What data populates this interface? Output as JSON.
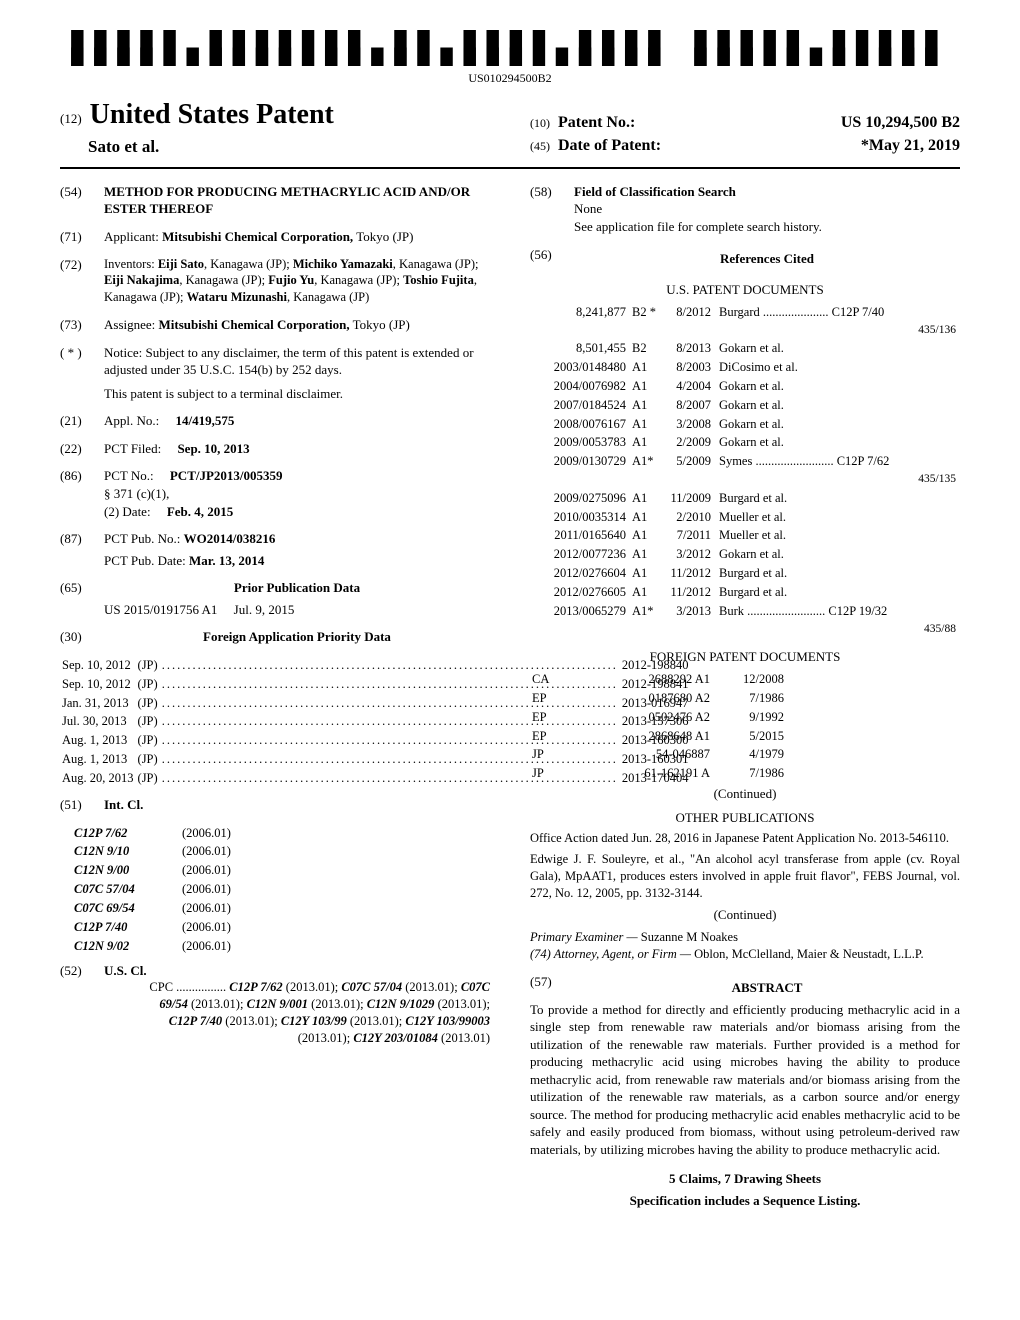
{
  "barcode_label": "US010294500B2",
  "header": {
    "prefix": "(12)",
    "title": "United States Patent",
    "authors": "Sato et al.",
    "patent_no_prefix": "(10)",
    "patent_no_label": "Patent No.:",
    "patent_no": "US 10,294,500 B2",
    "date_prefix": "(45)",
    "date_label": "Date of Patent:",
    "date": "*May 21, 2019"
  },
  "left": {
    "s54": {
      "num": "(54)",
      "title": "METHOD FOR PRODUCING METHACRYLIC ACID AND/OR ESTER THEREOF"
    },
    "s71": {
      "num": "(71)",
      "label": "Applicant:",
      "val": "Mitsubishi Chemical Corporation,",
      "loc": "Tokyo (JP)"
    },
    "s72": {
      "num": "(72)",
      "label": "Inventors:",
      "val": "Eiji Sato, Kanagawa (JP); Michiko Yamazaki, Kanagawa (JP); Eiji Nakajima, Kanagawa (JP); Fujio Yu, Kanagawa (JP); Toshio Fujita, Kanagawa (JP); Wataru Mizunashi, Kanagawa (JP)"
    },
    "s73": {
      "num": "(73)",
      "label": "Assignee:",
      "val": "Mitsubishi Chemical Corporation,",
      "loc": "Tokyo (JP)"
    },
    "notice": {
      "num": "( * )",
      "label": "Notice:",
      "line1": "Subject to any disclaimer, the term of this patent is extended or adjusted under 35 U.S.C. 154(b) by 252 days.",
      "line2": "This patent is subject to a terminal disclaimer."
    },
    "s21": {
      "num": "(21)",
      "label": "Appl. No.:",
      "val": "14/419,575"
    },
    "s22": {
      "num": "(22)",
      "label": "PCT Filed:",
      "val": "Sep. 10, 2013"
    },
    "s86": {
      "num": "(86)",
      "label": "PCT No.:",
      "val": "PCT/JP2013/005359",
      "sub1": "§ 371 (c)(1),",
      "sub2label": "(2) Date:",
      "sub2val": "Feb. 4, 2015"
    },
    "s87": {
      "num": "(87)",
      "label": "PCT Pub. No.:",
      "val": "WO2014/038216",
      "sub_label": "PCT Pub. Date:",
      "sub_val": "Mar. 13, 2014"
    },
    "s65": {
      "num": "(65)",
      "heading": "Prior Publication Data",
      "line": "US 2015/0191756 A1",
      "date": "Jul. 9, 2015"
    },
    "s30": {
      "num": "(30)",
      "heading": "Foreign Application Priority Data"
    },
    "priority": [
      {
        "date": "Sep. 10, 2012",
        "cc": "(JP)",
        "num": "2012-198840"
      },
      {
        "date": "Sep. 10, 2012",
        "cc": "(JP)",
        "num": "2012-198841"
      },
      {
        "date": "Jan. 31, 2013",
        "cc": "(JP)",
        "num": "2013-016947"
      },
      {
        "date": "Jul. 30, 2013",
        "cc": "(JP)",
        "num": "2013-157306"
      },
      {
        "date": "Aug. 1, 2013",
        "cc": "(JP)",
        "num": "2013-160300"
      },
      {
        "date": "Aug. 1, 2013",
        "cc": "(JP)",
        "num": "2013-160301"
      },
      {
        "date": "Aug. 20, 2013",
        "cc": "(JP)",
        "num": "2013-170404"
      }
    ],
    "s51": {
      "num": "(51)",
      "label": "Int. Cl."
    },
    "intcl": [
      {
        "code": "C12P 7/62",
        "yr": "(2006.01)"
      },
      {
        "code": "C12N 9/10",
        "yr": "(2006.01)"
      },
      {
        "code": "C12N 9/00",
        "yr": "(2006.01)"
      },
      {
        "code": "C07C 57/04",
        "yr": "(2006.01)"
      },
      {
        "code": "C07C 69/54",
        "yr": "(2006.01)"
      },
      {
        "code": "C12P 7/40",
        "yr": "(2006.01)"
      },
      {
        "code": "C12N 9/02",
        "yr": "(2006.01)"
      }
    ],
    "s52": {
      "num": "(52)",
      "label": "U.S. Cl.",
      "cpc": "CPC ................ C12P 7/62 (2013.01); C07C 57/04 (2013.01); C07C 69/54 (2013.01); C12N 9/001 (2013.01); C12N 9/1029 (2013.01); C12P 7/40 (2013.01); C12Y 103/99 (2013.01); C12Y 103/99003 (2013.01); C12Y 203/01084 (2013.01)"
    }
  },
  "right": {
    "s58": {
      "num": "(58)",
      "label": "Field of Classification Search",
      "line1": "None",
      "line2": "See application file for complete search history."
    },
    "s56": {
      "num": "(56)",
      "heading": "References Cited"
    },
    "us_heading": "U.S. PATENT DOCUMENTS",
    "us_patents": [
      {
        "n": "8,241,877",
        "k": "B2 *",
        "d": "8/2012",
        "a": "Burgard ..................... C12P 7/40",
        "extra": "435/136"
      },
      {
        "n": "8,501,455",
        "k": "B2",
        "d": "8/2013",
        "a": "Gokarn et al."
      },
      {
        "n": "2003/0148480",
        "k": "A1",
        "d": "8/2003",
        "a": "DiCosimo et al."
      },
      {
        "n": "2004/0076982",
        "k": "A1",
        "d": "4/2004",
        "a": "Gokarn et al."
      },
      {
        "n": "2007/0184524",
        "k": "A1",
        "d": "8/2007",
        "a": "Gokarn et al."
      },
      {
        "n": "2008/0076167",
        "k": "A1",
        "d": "3/2008",
        "a": "Gokarn et al."
      },
      {
        "n": "2009/0053783",
        "k": "A1",
        "d": "2/2009",
        "a": "Gokarn et al."
      },
      {
        "n": "2009/0130729",
        "k": "A1*",
        "d": "5/2009",
        "a": "Symes ......................... C12P 7/62",
        "extra": "435/135"
      },
      {
        "n": "2009/0275096",
        "k": "A1",
        "d": "11/2009",
        "a": "Burgard et al."
      },
      {
        "n": "2010/0035314",
        "k": "A1",
        "d": "2/2010",
        "a": "Mueller et al."
      },
      {
        "n": "2011/0165640",
        "k": "A1",
        "d": "7/2011",
        "a": "Mueller et al."
      },
      {
        "n": "2012/0077236",
        "k": "A1",
        "d": "3/2012",
        "a": "Gokarn et al."
      },
      {
        "n": "2012/0276604",
        "k": "A1",
        "d": "11/2012",
        "a": "Burgard et al."
      },
      {
        "n": "2012/0276605",
        "k": "A1",
        "d": "11/2012",
        "a": "Burgard et al."
      },
      {
        "n": "2013/0065279",
        "k": "A1*",
        "d": "3/2013",
        "a": "Burk ......................... C12P 19/32",
        "extra": "435/88"
      }
    ],
    "foreign_heading": "FOREIGN PATENT DOCUMENTS",
    "foreign": [
      {
        "cc": "CA",
        "n": "2688292 A1",
        "d": "12/2008"
      },
      {
        "cc": "EP",
        "n": "0187680 A2",
        "d": "7/1986"
      },
      {
        "cc": "EP",
        "n": "0502476 A2",
        "d": "9/1992"
      },
      {
        "cc": "EP",
        "n": "2868648 A1",
        "d": "5/2015"
      },
      {
        "cc": "JP",
        "n": "54-046887",
        "d": "4/1979"
      },
      {
        "cc": "JP",
        "n": "61-162191 A",
        "d": "7/1986"
      }
    ],
    "continued": "(Continued)",
    "other_heading": "OTHER PUBLICATIONS",
    "other": [
      "Office Action dated Jun. 28, 2016 in Japanese Patent Application No. 2013-546110.",
      "Edwige J. F. Souleyre, et al., \"An alcohol acyl transferase from apple (cv. Royal Gala), MpAAT1, produces esters involved in apple fruit flavor\", FEBS Journal, vol. 272, No. 12, 2005, pp. 3132-3144."
    ],
    "examiner_label": "Primary Examiner —",
    "examiner": "Suzanne M Noakes",
    "attorney_label": "(74) Attorney, Agent, or Firm —",
    "attorney": "Oblon, McClelland, Maier & Neustadt, L.L.P.",
    "abstract_num": "(57)",
    "abstract_heading": "ABSTRACT",
    "abstract": "To provide a method for directly and efficiently producing methacrylic acid in a single step from renewable raw materials and/or biomass arising from the utilization of the renewable raw materials. Further provided is a method for producing methacrylic acid using microbes having the ability to produce methacrylic acid, from renewable raw materials and/or biomass arising from the utilization of the renewable raw materials, as a carbon source and/or energy source. The method for producing methacrylic acid enables methacrylic acid to be safely and easily produced from biomass, without using petroleum-derived raw materials, by utilizing microbes having the ability to produce methacrylic acid.",
    "claims": "5 Claims, 7 Drawing Sheets",
    "spec": "Specification includes a Sequence Listing."
  }
}
